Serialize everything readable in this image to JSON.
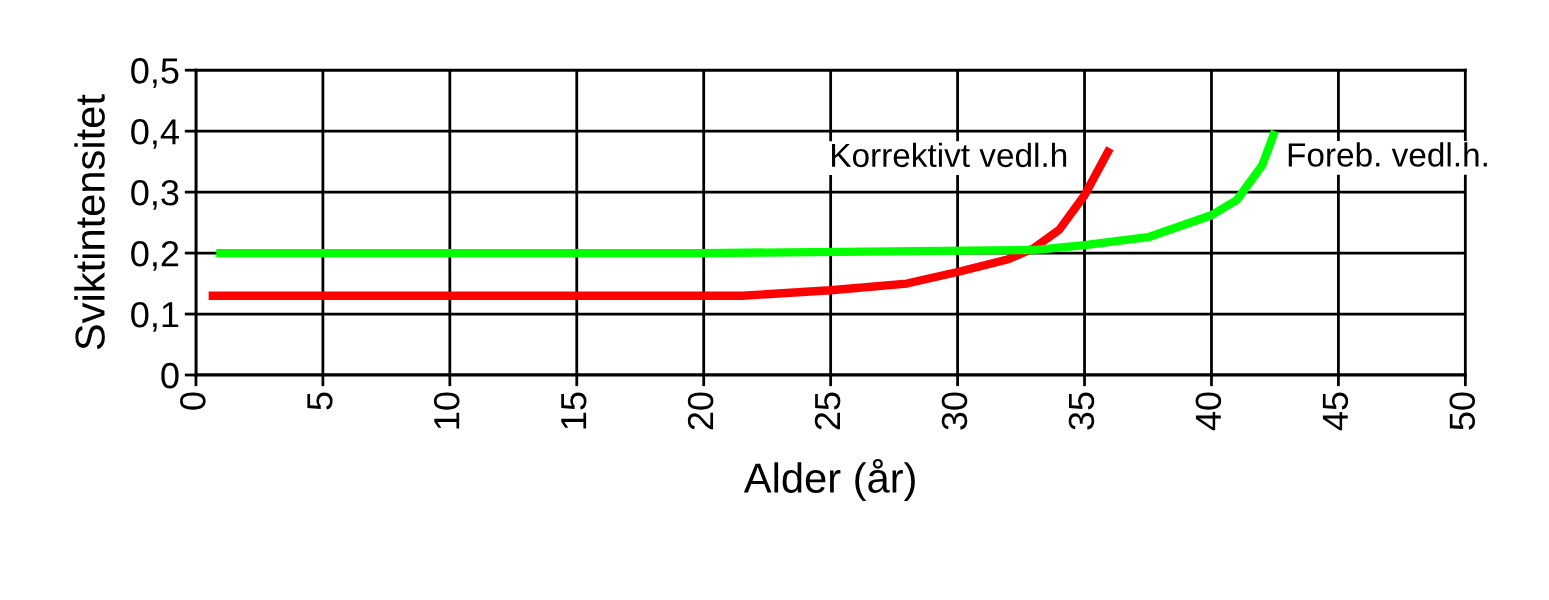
{
  "chart_data": {
    "type": "line",
    "xlabel": "Alder (år)",
    "ylabel": "Sviktintensitet",
    "xlim": [
      0,
      50
    ],
    "xticks": [
      0,
      5,
      10,
      15,
      20,
      25,
      30,
      35,
      40,
      45,
      50
    ],
    "ylim": [
      0,
      0.5
    ],
    "yticks": [
      {
        "value": 0,
        "label": "0"
      },
      {
        "value": 0.1,
        "label": "0,1"
      },
      {
        "value": 0.2,
        "label": "0,2"
      },
      {
        "value": 0.3,
        "label": "0,3"
      },
      {
        "value": 0.4,
        "label": "0,4"
      },
      {
        "value": 0.5,
        "label": "0,5"
      }
    ],
    "grid": true,
    "marker": "none",
    "line_style": "solid",
    "series": [
      {
        "name": "Korrektivt vedl.h",
        "color": "#ff0000",
        "x": [
          0.5,
          10,
          21.5,
          25,
          28,
          30,
          32,
          33,
          34,
          35,
          36
        ],
        "values": [
          0.13,
          0.13,
          0.13,
          0.139,
          0.15,
          0.169,
          0.19,
          0.208,
          0.238,
          0.295,
          0.372
        ]
      },
      {
        "name": "Foreb. vedl.h.",
        "color": "#00ff00",
        "x": [
          0.8,
          20,
          33,
          35,
          37.5,
          40,
          41,
          42,
          42.5
        ],
        "values": [
          0.2,
          0.2,
          0.205,
          0.213,
          0.226,
          0.262,
          0.287,
          0.344,
          0.4
        ]
      }
    ]
  }
}
